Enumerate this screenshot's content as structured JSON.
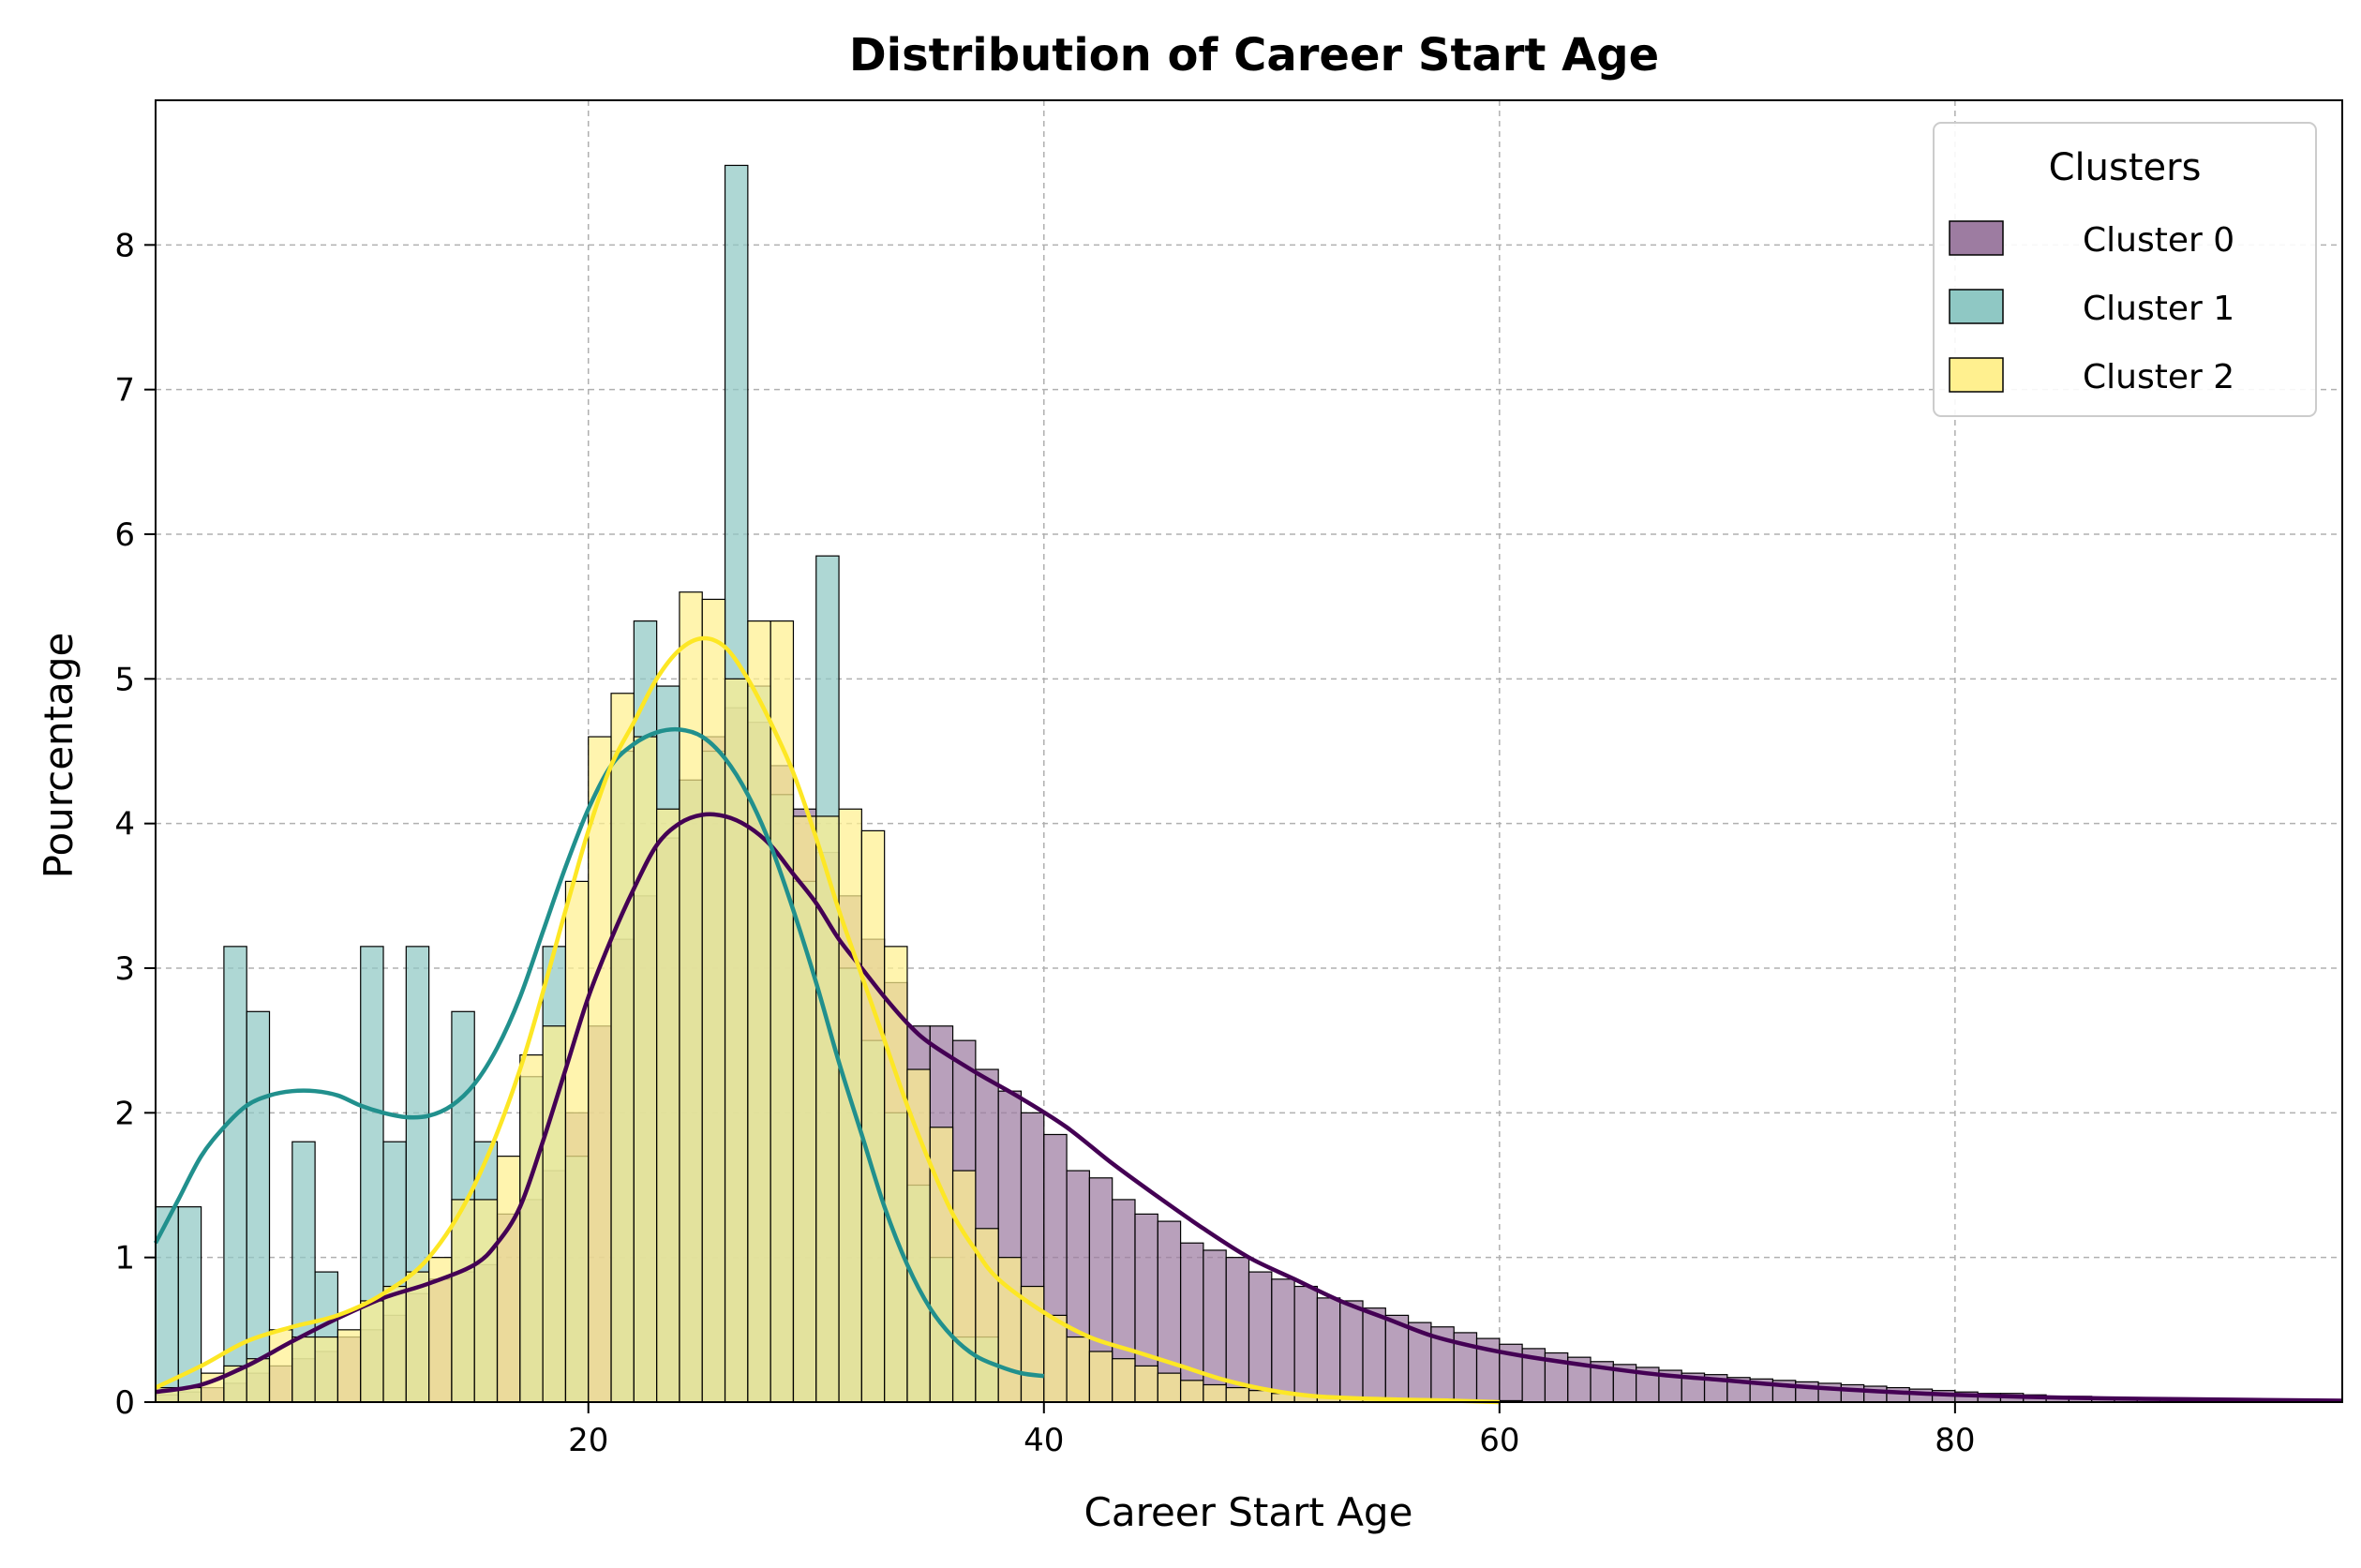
{
  "chart_data": {
    "type": "histogram",
    "title": "Distribution of Career Start Age",
    "xlabel": "Career Start Age",
    "ylabel": "Pourcentage",
    "xlim": [
      1,
      97
    ],
    "ylim": [
      0,
      9
    ],
    "xticks": [
      20,
      40,
      60,
      80
    ],
    "yticks": [
      0,
      1,
      2,
      3,
      4,
      5,
      6,
      7,
      8
    ],
    "grid": true,
    "legend": {
      "title": "Clusters",
      "position": "top-right"
    },
    "bin_width": 1,
    "series": [
      {
        "name": "Cluster 0",
        "color": "#440154",
        "fill": "#9d7ca1",
        "bin_start": 1,
        "values": [
          0.05,
          0.07,
          0.1,
          0.13,
          0.2,
          0.25,
          0.3,
          0.35,
          0.45,
          0.5,
          0.6,
          0.75,
          0.85,
          0.9,
          0.95,
          1.3,
          1.4,
          1.6,
          2.0,
          2.6,
          3.2,
          3.5,
          3.9,
          4.3,
          4.6,
          4.8,
          4.7,
          4.4,
          4.1,
          3.8,
          3.5,
          3.2,
          2.9,
          2.6,
          2.6,
          2.5,
          2.3,
          2.15,
          2.0,
          1.85,
          1.6,
          1.55,
          1.4,
          1.3,
          1.25,
          1.1,
          1.05,
          1.0,
          0.9,
          0.85,
          0.8,
          0.72,
          0.7,
          0.65,
          0.6,
          0.55,
          0.52,
          0.48,
          0.44,
          0.4,
          0.37,
          0.34,
          0.31,
          0.28,
          0.26,
          0.24,
          0.22,
          0.2,
          0.19,
          0.17,
          0.16,
          0.15,
          0.14,
          0.13,
          0.12,
          0.11,
          0.1,
          0.09,
          0.08,
          0.07,
          0.06,
          0.06,
          0.05,
          0.04,
          0.04,
          0.03,
          0.03,
          0.02,
          0.02,
          0.02,
          0.02,
          0.01,
          0.01,
          0.01,
          0.01,
          0.01
        ],
        "kde": [
          [
            1,
            0.07
          ],
          [
            3,
            0.12
          ],
          [
            5,
            0.25
          ],
          [
            7,
            0.42
          ],
          [
            9,
            0.58
          ],
          [
            11,
            0.72
          ],
          [
            13,
            0.82
          ],
          [
            15,
            0.95
          ],
          [
            16,
            1.1
          ],
          [
            17,
            1.35
          ],
          [
            18,
            1.8
          ],
          [
            19,
            2.3
          ],
          [
            20,
            2.8
          ],
          [
            21,
            3.2
          ],
          [
            22,
            3.55
          ],
          [
            23,
            3.85
          ],
          [
            24,
            4.0
          ],
          [
            25,
            4.06
          ],
          [
            26,
            4.05
          ],
          [
            27,
            3.98
          ],
          [
            28,
            3.85
          ],
          [
            29,
            3.65
          ],
          [
            30,
            3.45
          ],
          [
            31,
            3.2
          ],
          [
            32,
            3.0
          ],
          [
            33,
            2.8
          ],
          [
            34,
            2.62
          ],
          [
            35,
            2.48
          ],
          [
            37,
            2.28
          ],
          [
            39,
            2.1
          ],
          [
            41,
            1.9
          ],
          [
            43,
            1.65
          ],
          [
            45,
            1.42
          ],
          [
            47,
            1.2
          ],
          [
            49,
            1.0
          ],
          [
            51,
            0.85
          ],
          [
            53,
            0.7
          ],
          [
            55,
            0.58
          ],
          [
            57,
            0.46
          ],
          [
            59,
            0.38
          ],
          [
            61,
            0.32
          ],
          [
            64,
            0.25
          ],
          [
            67,
            0.19
          ],
          [
            70,
            0.15
          ],
          [
            73,
            0.11
          ],
          [
            76,
            0.08
          ],
          [
            80,
            0.05
          ],
          [
            85,
            0.03
          ],
          [
            90,
            0.02
          ],
          [
            97,
            0.01
          ]
        ]
      },
      {
        "name": "Cluster 1",
        "color": "#21908d",
        "fill": "#8fc8c4",
        "bin_start": 1,
        "values": [
          1.35,
          1.35,
          0.0,
          3.15,
          2.7,
          0.0,
          1.8,
          0.9,
          0.0,
          3.15,
          1.8,
          3.15,
          0.0,
          2.7,
          1.8,
          0.0,
          2.25,
          3.15,
          1.7,
          0.0,
          4.5,
          5.4,
          4.95,
          4.3,
          4.5,
          8.55,
          4.95,
          4.2,
          3.6,
          5.85,
          3.0,
          2.5,
          2.0,
          1.5,
          1.0,
          0.45,
          0.45,
          0.0,
          0.0
        ],
        "kde": [
          [
            1,
            1.1
          ],
          [
            2,
            1.4
          ],
          [
            3,
            1.7
          ],
          [
            4,
            1.9
          ],
          [
            5,
            2.05
          ],
          [
            6,
            2.12
          ],
          [
            7,
            2.15
          ],
          [
            8,
            2.15
          ],
          [
            9,
            2.12
          ],
          [
            10,
            2.05
          ],
          [
            11,
            2.0
          ],
          [
            12,
            1.97
          ],
          [
            13,
            1.98
          ],
          [
            14,
            2.05
          ],
          [
            15,
            2.2
          ],
          [
            16,
            2.45
          ],
          [
            17,
            2.8
          ],
          [
            18,
            3.25
          ],
          [
            19,
            3.7
          ],
          [
            20,
            4.1
          ],
          [
            21,
            4.4
          ],
          [
            22,
            4.55
          ],
          [
            23,
            4.63
          ],
          [
            24,
            4.65
          ],
          [
            25,
            4.6
          ],
          [
            26,
            4.45
          ],
          [
            27,
            4.2
          ],
          [
            28,
            3.85
          ],
          [
            29,
            3.4
          ],
          [
            30,
            2.9
          ],
          [
            31,
            2.35
          ],
          [
            32,
            1.85
          ],
          [
            33,
            1.35
          ],
          [
            34,
            0.95
          ],
          [
            35,
            0.65
          ],
          [
            36,
            0.45
          ],
          [
            37,
            0.32
          ],
          [
            38,
            0.25
          ],
          [
            39,
            0.2
          ],
          [
            40,
            0.18
          ]
        ]
      },
      {
        "name": "Cluster 2",
        "color": "#fde725",
        "fill": "#fff08f",
        "bin_start": 1,
        "values": [
          0.1,
          0.1,
          0.2,
          0.25,
          0.3,
          0.5,
          0.45,
          0.45,
          0.5,
          0.7,
          0.8,
          0.9,
          1.0,
          1.4,
          1.4,
          1.7,
          2.4,
          2.6,
          3.6,
          4.6,
          4.9,
          4.6,
          4.1,
          5.6,
          5.55,
          5.0,
          5.4,
          5.4,
          4.05,
          4.05,
          4.1,
          3.95,
          3.15,
          2.3,
          1.9,
          1.6,
          1.2,
          1.0,
          0.8,
          0.6,
          0.45,
          0.35,
          0.3,
          0.25,
          0.2,
          0.15,
          0.12,
          0.1,
          0.08,
          0.06,
          0.05,
          0.04,
          0.03,
          0.03,
          0.02,
          0.02,
          0.02,
          0.01,
          0.01,
          0.01
        ],
        "kde": [
          [
            1,
            0.1
          ],
          [
            3,
            0.25
          ],
          [
            5,
            0.42
          ],
          [
            7,
            0.52
          ],
          [
            9,
            0.6
          ],
          [
            11,
            0.75
          ],
          [
            13,
            1.0
          ],
          [
            15,
            1.5
          ],
          [
            17,
            2.3
          ],
          [
            19,
            3.4
          ],
          [
            20,
            3.95
          ],
          [
            21,
            4.4
          ],
          [
            22,
            4.7
          ],
          [
            23,
            5.0
          ],
          [
            24,
            5.2
          ],
          [
            25,
            5.28
          ],
          [
            26,
            5.22
          ],
          [
            27,
            5.0
          ],
          [
            28,
            4.7
          ],
          [
            29,
            4.35
          ],
          [
            30,
            3.9
          ],
          [
            31,
            3.4
          ],
          [
            32,
            2.95
          ],
          [
            33,
            2.5
          ],
          [
            34,
            2.05
          ],
          [
            35,
            1.65
          ],
          [
            36,
            1.3
          ],
          [
            37,
            1.05
          ],
          [
            38,
            0.85
          ],
          [
            40,
            0.62
          ],
          [
            42,
            0.45
          ],
          [
            44,
            0.35
          ],
          [
            46,
            0.25
          ],
          [
            48,
            0.15
          ],
          [
            50,
            0.08
          ],
          [
            52,
            0.04
          ],
          [
            55,
            0.02
          ],
          [
            58,
            0.01
          ],
          [
            60,
            0.0
          ]
        ]
      }
    ]
  }
}
